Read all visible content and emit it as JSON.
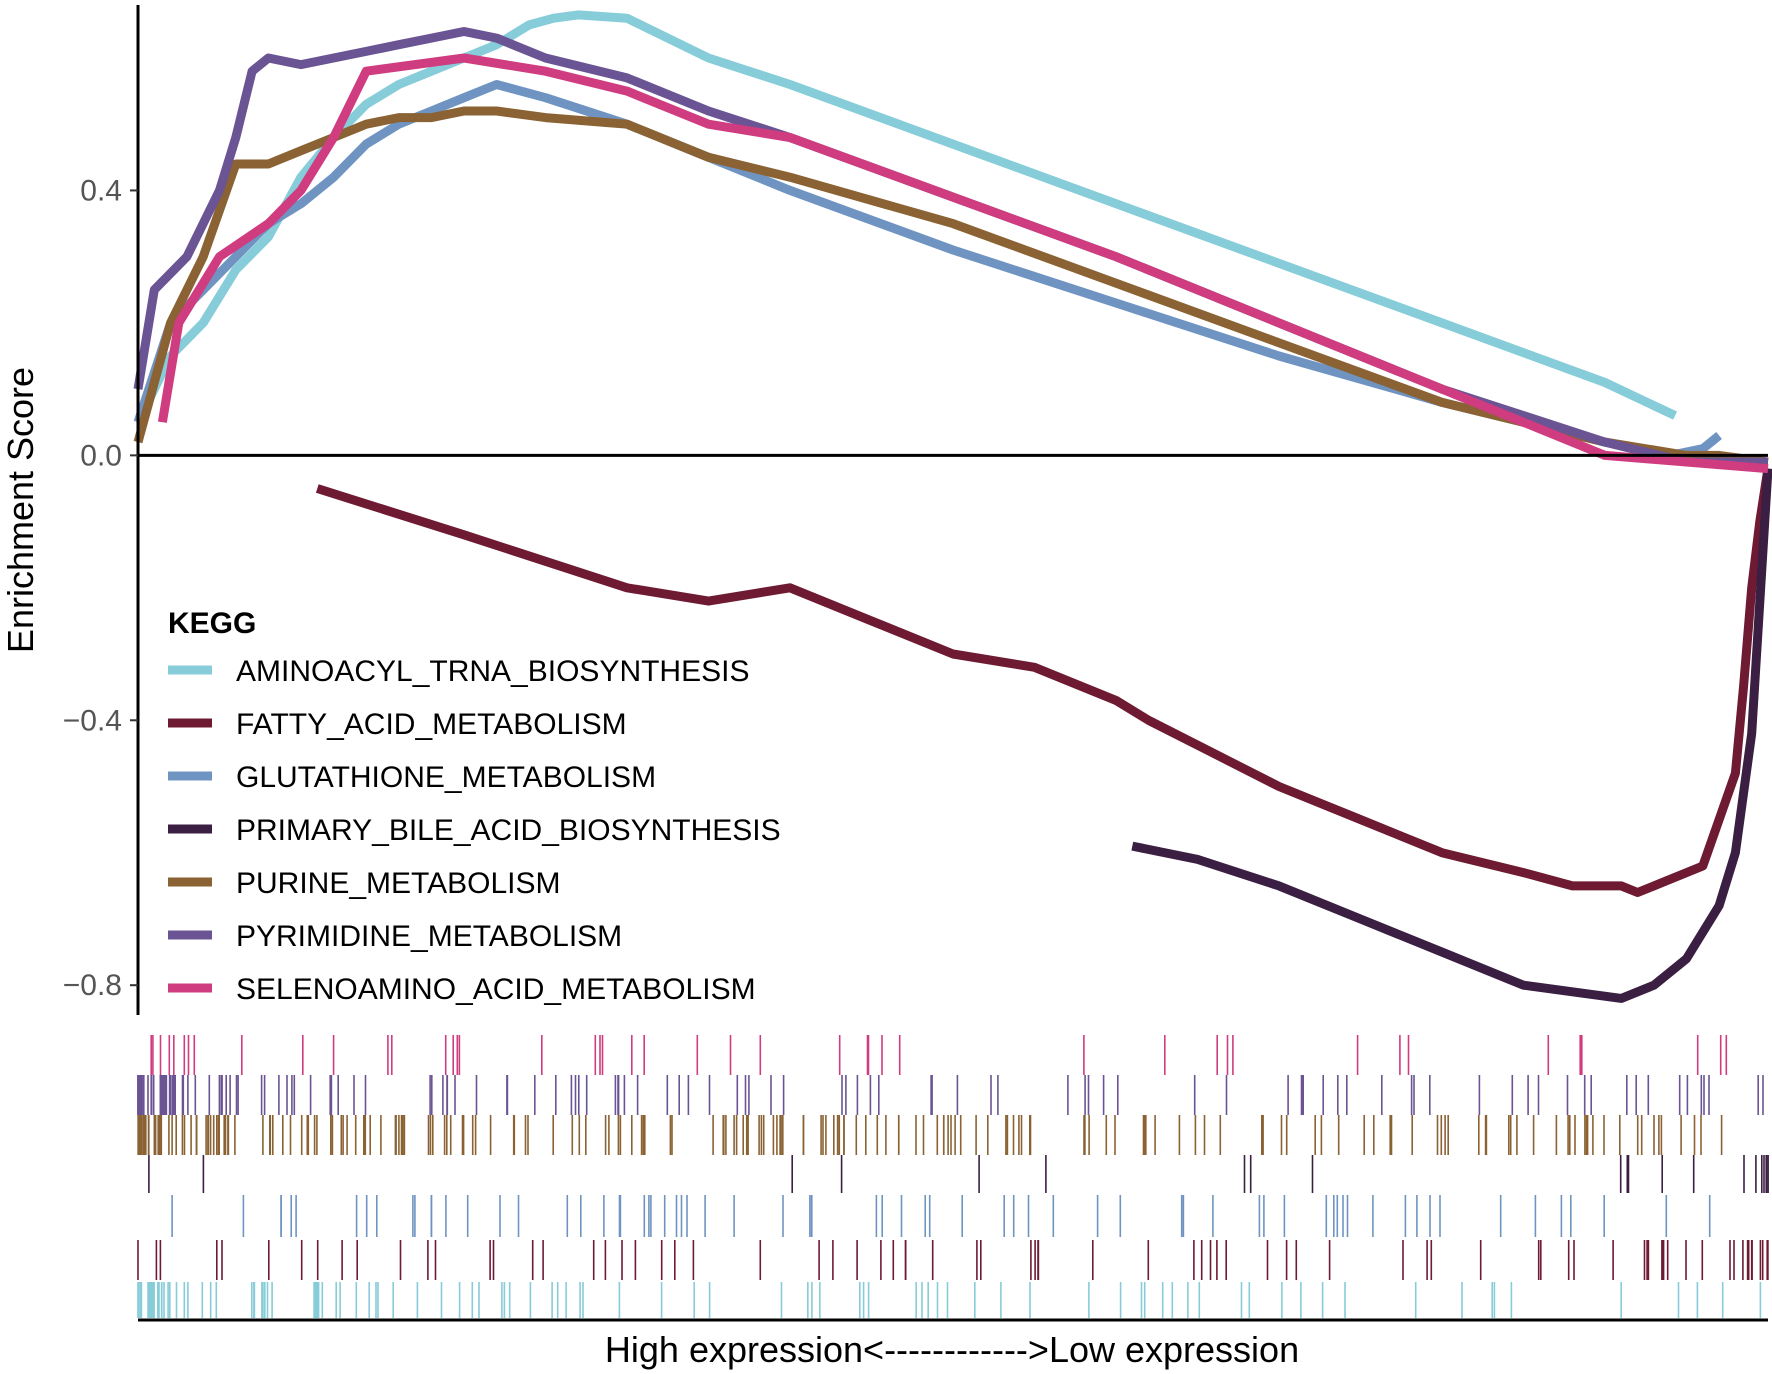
{
  "chart_data": {
    "type": "line",
    "ylabel": "Enrichment Score",
    "xlabel": "High expression<------------>Low expression",
    "xlim": [
      0,
      1
    ],
    "ylim": [
      -0.845,
      0.68
    ],
    "yticks": [
      {
        "value": 0.4,
        "label": "0.4"
      },
      {
        "value": 0.0,
        "label": "0.0"
      },
      {
        "value": -0.4,
        "label": "−0.4"
      },
      {
        "value": -0.8,
        "label": "−0.8"
      }
    ],
    "legend": {
      "title": "KEGG",
      "position": "left-middle"
    },
    "series": [
      {
        "name": "AMINOACYL_TRNA_BIOSYNTHESIS",
        "color": "#86CCD9",
        "x": [
          0.0,
          0.02,
          0.04,
          0.06,
          0.08,
          0.1,
          0.12,
          0.14,
          0.16,
          0.18,
          0.2,
          0.22,
          0.24,
          0.255,
          0.27,
          0.3,
          0.35,
          0.4,
          0.5,
          0.6,
          0.7,
          0.8,
          0.9,
          0.943
        ],
        "y": [
          0.05,
          0.15,
          0.2,
          0.28,
          0.33,
          0.42,
          0.48,
          0.53,
          0.56,
          0.58,
          0.6,
          0.62,
          0.65,
          0.66,
          0.665,
          0.66,
          0.6,
          0.56,
          0.47,
          0.38,
          0.29,
          0.2,
          0.11,
          0.06
        ]
      },
      {
        "name": "FATTY_ACID_METABOLISM",
        "color": "#6E1A33",
        "x": [
          0.11,
          0.2,
          0.3,
          0.35,
          0.4,
          0.45,
          0.5,
          0.55,
          0.6,
          0.62,
          0.66,
          0.7,
          0.75,
          0.8,
          0.85,
          0.88,
          0.91,
          0.92,
          0.93,
          0.96,
          0.97,
          0.98,
          0.985,
          0.99,
          0.995,
          1.0
        ],
        "y": [
          -0.05,
          -0.12,
          -0.2,
          -0.22,
          -0.2,
          -0.25,
          -0.3,
          -0.32,
          -0.37,
          -0.4,
          -0.45,
          -0.5,
          -0.55,
          -0.6,
          -0.63,
          -0.65,
          -0.65,
          -0.66,
          -0.65,
          -0.62,
          -0.55,
          -0.48,
          -0.35,
          -0.2,
          -0.1,
          -0.02
        ]
      },
      {
        "name": "GLUTATHIONE_METABOLISM",
        "color": "#6F94C2",
        "x": [
          0.0,
          0.02,
          0.04,
          0.06,
          0.08,
          0.1,
          0.12,
          0.14,
          0.16,
          0.18,
          0.2,
          0.22,
          0.25,
          0.3,
          0.35,
          0.4,
          0.5,
          0.6,
          0.7,
          0.8,
          0.9,
          0.94,
          0.96,
          0.97
        ],
        "y": [
          0.05,
          0.2,
          0.25,
          0.3,
          0.35,
          0.38,
          0.42,
          0.47,
          0.5,
          0.52,
          0.54,
          0.56,
          0.54,
          0.5,
          0.45,
          0.4,
          0.31,
          0.23,
          0.15,
          0.08,
          0.02,
          0.0,
          0.01,
          0.03
        ]
      },
      {
        "name": "PRIMARY_BILE_ACID_BIOSYNTHESIS",
        "color": "#3B1F43",
        "x": [
          0.61,
          0.65,
          0.7,
          0.75,
          0.8,
          0.85,
          0.88,
          0.91,
          0.93,
          0.95,
          0.97,
          0.98,
          0.99,
          1.0
        ],
        "y": [
          -0.59,
          -0.61,
          -0.65,
          -0.7,
          -0.75,
          -0.8,
          -0.81,
          -0.82,
          -0.8,
          -0.76,
          -0.68,
          -0.6,
          -0.42,
          -0.02
        ]
      },
      {
        "name": "PURINE_METABOLISM",
        "color": "#8A6233",
        "x": [
          0.0,
          0.02,
          0.04,
          0.06,
          0.08,
          0.1,
          0.12,
          0.14,
          0.16,
          0.18,
          0.2,
          0.22,
          0.25,
          0.3,
          0.35,
          0.4,
          0.5,
          0.6,
          0.7,
          0.8,
          0.9,
          0.95,
          0.97,
          1.0
        ],
        "y": [
          0.02,
          0.2,
          0.3,
          0.44,
          0.44,
          0.46,
          0.48,
          0.5,
          0.51,
          0.51,
          0.52,
          0.52,
          0.51,
          0.5,
          0.45,
          0.42,
          0.35,
          0.26,
          0.17,
          0.08,
          0.02,
          0.0,
          0.0,
          -0.01
        ]
      },
      {
        "name": "PYRIMIDINE_METABOLISM",
        "color": "#6A5493",
        "x": [
          0.0,
          0.01,
          0.03,
          0.05,
          0.06,
          0.07,
          0.08,
          0.1,
          0.12,
          0.14,
          0.16,
          0.18,
          0.2,
          0.22,
          0.25,
          0.3,
          0.35,
          0.4,
          0.5,
          0.6,
          0.7,
          0.8,
          0.9,
          0.95,
          0.97,
          1.0
        ],
        "y": [
          0.1,
          0.25,
          0.3,
          0.4,
          0.48,
          0.58,
          0.6,
          0.59,
          0.6,
          0.61,
          0.62,
          0.63,
          0.64,
          0.63,
          0.6,
          0.57,
          0.52,
          0.48,
          0.39,
          0.3,
          0.2,
          0.1,
          0.02,
          -0.01,
          -0.01,
          -0.01
        ]
      },
      {
        "name": "SELENOAMINO_ACID_METABOLISM",
        "color": "#CF3C80",
        "x": [
          0.015,
          0.025,
          0.05,
          0.08,
          0.1,
          0.12,
          0.14,
          0.2,
          0.25,
          0.3,
          0.35,
          0.4,
          0.5,
          0.6,
          0.7,
          0.8,
          0.9,
          0.95,
          1.0
        ],
        "y": [
          0.05,
          0.2,
          0.3,
          0.35,
          0.4,
          0.48,
          0.58,
          0.6,
          0.58,
          0.55,
          0.5,
          0.48,
          0.39,
          0.3,
          0.2,
          0.1,
          0.0,
          -0.01,
          -0.02
        ]
      }
    ]
  }
}
